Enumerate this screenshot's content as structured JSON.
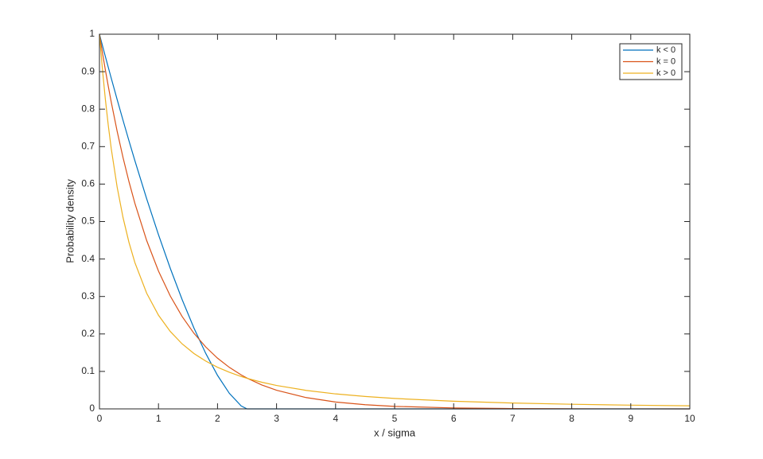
{
  "chart_data": {
    "type": "line",
    "xlabel": "x / sigma",
    "ylabel": "Probability density",
    "x": [
      0,
      0.05,
      0.1,
      0.15,
      0.2,
      0.3,
      0.4,
      0.5,
      0.6,
      0.8,
      1,
      1.2,
      1.4,
      1.6,
      1.8,
      2,
      2.2,
      2.4,
      2.5,
      2.75,
      3,
      3.5,
      4,
      4.5,
      5,
      6,
      7,
      8,
      9,
      10
    ],
    "series": [
      {
        "name": "k < 0",
        "color": "#0072bd",
        "values": [
          1,
          0.9702,
          0.9406,
          0.9114,
          0.8824,
          0.8255,
          0.7699,
          0.7155,
          0.6626,
          0.5607,
          0.4648,
          0.375,
          0.2919,
          0.216,
          0.1482,
          0.0894,
          0.0416,
          0.008,
          0,
          0,
          0,
          0,
          0,
          0,
          0,
          0,
          0,
          0,
          0,
          0
        ]
      },
      {
        "name": "k = 0",
        "color": "#d95319",
        "values": [
          1,
          0.9512,
          0.9048,
          0.8607,
          0.8187,
          0.7408,
          0.6703,
          0.6065,
          0.5488,
          0.4493,
          0.3679,
          0.3012,
          0.2466,
          0.2019,
          0.1653,
          0.1353,
          0.1108,
          0.0907,
          0.0821,
          0.0639,
          0.0498,
          0.0302,
          0.0183,
          0.0111,
          0.0067,
          0.0025,
          0.0009,
          0.0003,
          0.0001,
          0
        ]
      },
      {
        "name": "k > 0",
        "color": "#edb120",
        "values": [
          1,
          0.907,
          0.8264,
          0.7561,
          0.6944,
          0.5917,
          0.5102,
          0.4444,
          0.3906,
          0.3086,
          0.25,
          0.2066,
          0.1736,
          0.1479,
          0.1276,
          0.1111,
          0.0977,
          0.0865,
          0.0816,
          0.0711,
          0.0625,
          0.0494,
          0.04,
          0.0331,
          0.0278,
          0.0204,
          0.0156,
          0.0123,
          0.01,
          0.0083
        ]
      }
    ],
    "xlim": [
      0,
      10
    ],
    "xticks": [
      0,
      1,
      2,
      3,
      4,
      5,
      6,
      7,
      8,
      9,
      10
    ],
    "ylim": [
      0,
      1
    ],
    "yticks": [
      0,
      0.1,
      0.2,
      0.3,
      0.4,
      0.5,
      0.6,
      0.7,
      0.8,
      0.9,
      1
    ],
    "legend": "top-right",
    "grid": false
  }
}
